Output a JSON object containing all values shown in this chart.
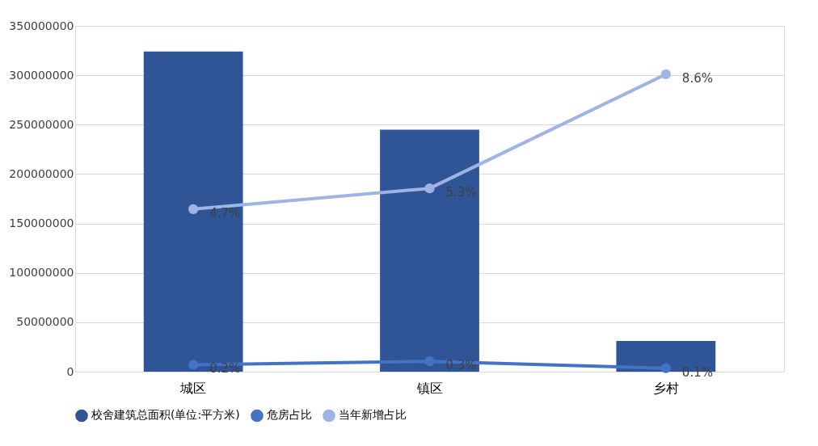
{
  "chart_data": {
    "type": "bar",
    "categories": [
      "城区",
      "镇区",
      "乡村"
    ],
    "series": [
      {
        "name": "校舍建筑总面积(单位:平方米)",
        "color": "#2f5597",
        "values": [
          324000000,
          245000000,
          31000000
        ]
      },
      {
        "name": "危房占比",
        "type": "line",
        "axis": "y2",
        "color": "#4472c4",
        "values": [
          0.2,
          0.3,
          0.1
        ],
        "value_labels": [
          "0.2%",
          "0.3%",
          "0.1%"
        ]
      },
      {
        "name": "当年新增占比",
        "type": "line",
        "axis": "y2",
        "color": "#9fb4e6",
        "values": [
          4.7,
          5.3,
          8.6
        ],
        "value_labels": [
          "4.7%",
          "5.3%",
          "8.6%"
        ]
      }
    ],
    "ylim": [
      0,
      350000000
    ],
    "yticks": [
      0,
      50000000,
      100000000,
      150000000,
      200000000,
      250000000,
      300000000,
      350000000
    ],
    "y2lim": [
      0,
      10
    ],
    "grid": "y",
    "legend": "bottom",
    "marker": "circle",
    "line_style": "solid"
  }
}
